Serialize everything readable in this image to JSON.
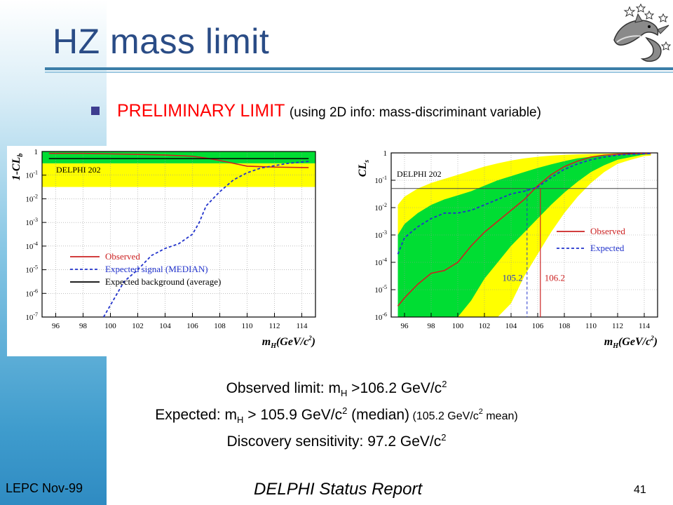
{
  "slide": {
    "title": "HZ mass limit",
    "bullet_main": "PRELIMINARY LIMIT",
    "bullet_paren": "(using 2D info: mass-discriminant variable)",
    "footer_left": "LEPC Nov-99",
    "footer_center": "DELPHI Status Report",
    "footer_right": "41"
  },
  "results": {
    "observed_prefix": "Observed limit: m",
    "observed_sub": "H",
    "observed_value": " >106.2 GeV/c",
    "observed_sup": "2",
    "expected_prefix": "Expected:  m",
    "expected_sub": "H",
    "expected_value": " > 105.9 GeV/c",
    "expected_sup": "2",
    "expected_median": " (median)",
    "expected_mean_a": " (105.2 GeV/c",
    "expected_mean_sup": "2",
    "expected_mean_b": " mean)",
    "discovery_prefix": "Discovery sensitivity: 97.2 GeV/c",
    "discovery_sup": "2"
  },
  "colors": {
    "title": "#2a4c86",
    "prelim": "#ff0000",
    "observed": "#cc2222",
    "expected": "#2233cc",
    "band_1sigma": "#00dd33",
    "band_2sigma": "#ffff00"
  },
  "chart_data": [
    {
      "type": "line",
      "experiment_label": "DELPHI 202",
      "ylabel": "1-CL_b",
      "xlabel": "m_H(GeV/c^2)",
      "x_ticks": [
        "96",
        "98",
        "100",
        "102",
        "104",
        "106",
        "108",
        "110",
        "112",
        "114"
      ],
      "y_ticks": [
        "1",
        "10^-1",
        "10^-2",
        "10^-3",
        "10^-4",
        "10^-5",
        "10^-6",
        "10^-7"
      ],
      "xlim": [
        95,
        115
      ],
      "ylog_range": [
        -7,
        0
      ],
      "legend": [
        "Observed",
        "Expected signal (MEDIAN)",
        "Expected background (average)"
      ],
      "bands_log": {
        "green": [
          0,
          -0.5
        ],
        "yellow": [
          -0.5,
          -1.5
        ]
      },
      "series": [
        {
          "name": "Observed",
          "style": "solid-red",
          "x": [
            95.5,
            98,
            100,
            102,
            104,
            106,
            107,
            108,
            109,
            110,
            112,
            114.5
          ],
          "log_y": [
            -0.08,
            -0.08,
            -0.1,
            -0.12,
            -0.15,
            -0.2,
            -0.28,
            -0.38,
            -0.5,
            -0.62,
            -0.66,
            -0.68
          ]
        },
        {
          "name": "Expected signal (MEDIAN)",
          "style": "dashed-blue",
          "x": [
            99.5,
            100,
            101,
            102,
            103,
            104,
            105,
            106,
            106.5,
            107,
            108,
            109,
            110,
            111,
            112,
            113,
            114.5
          ],
          "log_y": [
            -7,
            -6.5,
            -5.5,
            -5,
            -4.4,
            -4.1,
            -3.9,
            -3.5,
            -3.0,
            -2.3,
            -1.7,
            -1.2,
            -0.9,
            -0.7,
            -0.6,
            -0.5,
            -0.42
          ]
        },
        {
          "name": "Expected background (average)",
          "style": "solid-black",
          "x": [
            95.5,
            114.5
          ],
          "log_y": [
            -0.3,
            -0.3
          ]
        }
      ]
    },
    {
      "type": "line",
      "experiment_label": "DELPHI 202",
      "ylabel": "CL_s",
      "xlabel": "m_H(GeV/c^2)",
      "x_ticks": [
        "96",
        "98",
        "100",
        "102",
        "104",
        "106",
        "108",
        "110",
        "112",
        "114"
      ],
      "y_ticks": [
        "1",
        "10^-1",
        "10^-2",
        "10^-3",
        "10^-4",
        "10^-5",
        "10^-6"
      ],
      "xlim": [
        95,
        115
      ],
      "ylog_range": [
        -6,
        0
      ],
      "legend": [
        "Observed",
        "Expected"
      ],
      "annotations": [
        "105.2",
        "106.2"
      ],
      "limit_lines_x": [
        105.2,
        106.2
      ],
      "cl_line_log": -1.3,
      "series": [
        {
          "name": "Observed",
          "style": "solid-red",
          "x": [
            95.5,
            96,
            97,
            98,
            99,
            100,
            101,
            102,
            103,
            104,
            105,
            106,
            107,
            108,
            109,
            110,
            111,
            112,
            113,
            114,
            114.5
          ],
          "log_y": [
            -5.6,
            -5.3,
            -4.8,
            -4.4,
            -4.3,
            -4.0,
            -3.4,
            -2.9,
            -2.5,
            -2.1,
            -1.7,
            -1.2,
            -0.8,
            -0.5,
            -0.3,
            -0.15,
            -0.08,
            -0.05,
            -0.03,
            -0.02,
            -0.02
          ]
        },
        {
          "name": "Expected",
          "style": "dashed-blue",
          "x": [
            95.5,
            96,
            97,
            98,
            99,
            100,
            101,
            102,
            103,
            104,
            105,
            106,
            107,
            108,
            109,
            110,
            111,
            112,
            113,
            114,
            114.5
          ],
          "log_y": [
            -3.7,
            -3.1,
            -2.7,
            -2.4,
            -2.2,
            -2.2,
            -2.1,
            -1.9,
            -1.7,
            -1.5,
            -1.4,
            -1.25,
            -0.9,
            -0.6,
            -0.4,
            -0.25,
            -0.15,
            -0.08,
            -0.05,
            -0.03,
            -0.02
          ]
        }
      ],
      "band_2sigma_upper": [
        -1.9,
        -1.6,
        -1.3,
        -1.1,
        -0.95,
        -0.8,
        -0.65,
        -0.5,
        -0.38,
        -0.28,
        -0.2,
        -0.14,
        -0.1,
        -0.07,
        -0.05,
        -0.04,
        -0.03,
        -0.02,
        -0.01,
        -0.01,
        -0.01
      ],
      "band_2sigma_lower": [
        -6,
        -6,
        -6,
        -6,
        -6,
        -6,
        -6,
        -6,
        -6,
        -5.5,
        -4.5,
        -3.7,
        -2.9,
        -2.2,
        -1.6,
        -1.1,
        -0.7,
        -0.4,
        -0.25,
        -0.12,
        -0.1
      ],
      "band_1sigma_upper": [
        -3,
        -2.6,
        -2.2,
        -1.9,
        -1.7,
        -1.55,
        -1.4,
        -1.2,
        -1.0,
        -0.85,
        -0.7,
        -0.55,
        -0.42,
        -0.3,
        -0.2,
        -0.14,
        -0.1,
        -0.07,
        -0.04,
        -0.03,
        -0.02
      ],
      "band_1sigma_lower": [
        -6,
        -6,
        -6,
        -6,
        -6,
        -6,
        -5.4,
        -4.6,
        -4.0,
        -3.4,
        -2.9,
        -2.4,
        -1.9,
        -1.45,
        -1.05,
        -0.7,
        -0.45,
        -0.25,
        -0.15,
        -0.06,
        -0.05
      ]
    }
  ]
}
